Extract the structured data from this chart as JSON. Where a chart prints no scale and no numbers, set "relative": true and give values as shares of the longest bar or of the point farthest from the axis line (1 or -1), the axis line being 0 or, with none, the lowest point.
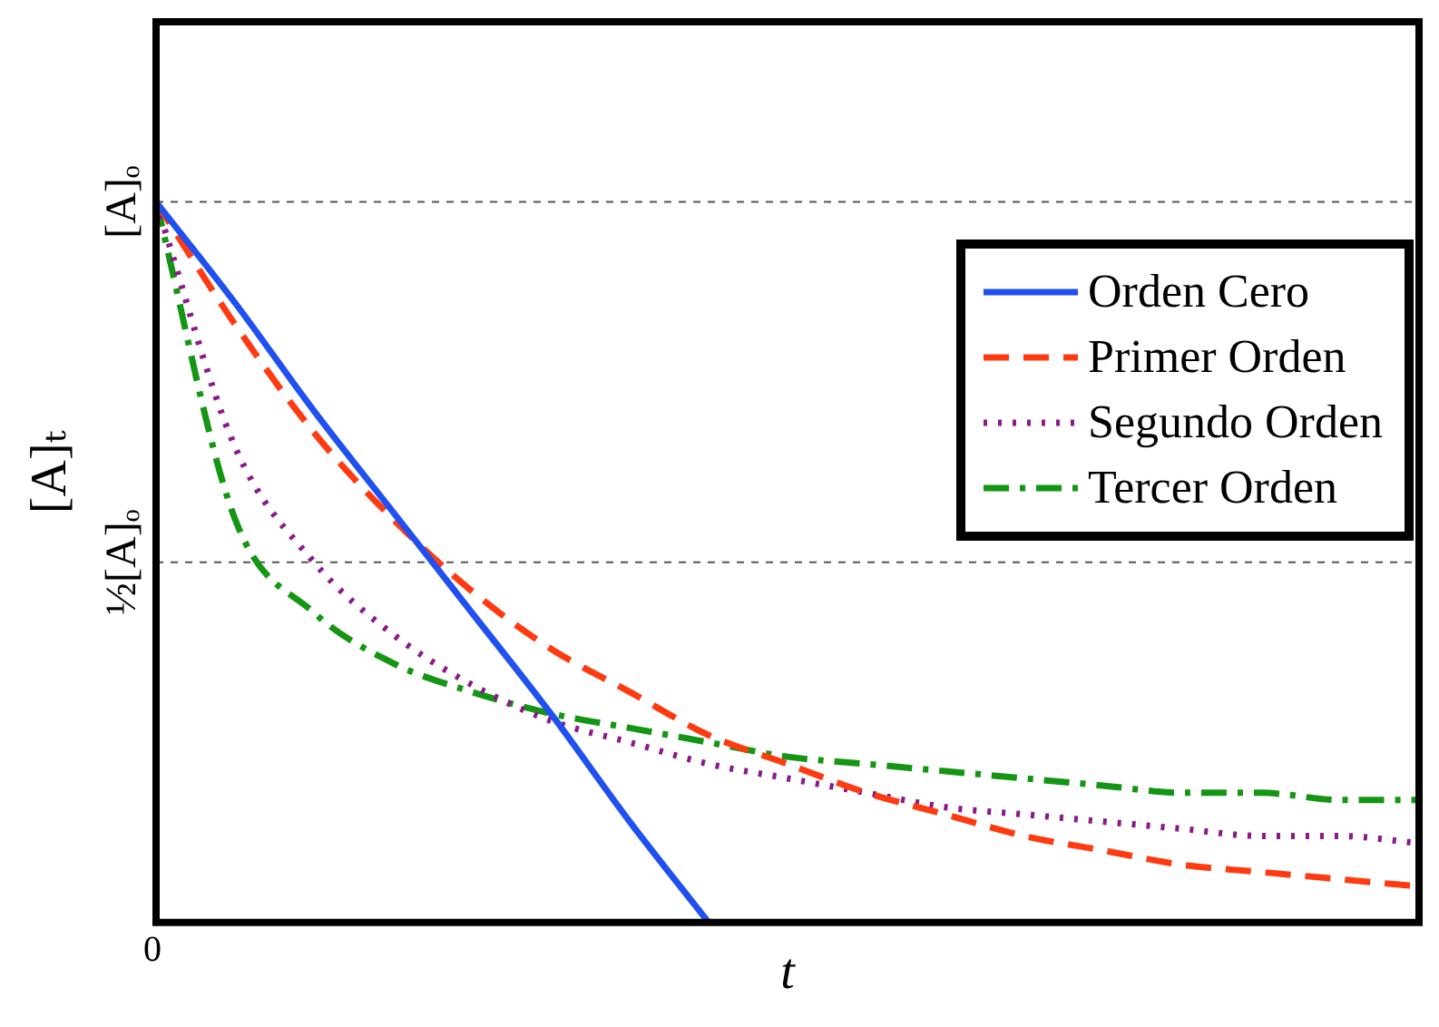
{
  "chart_data": {
    "type": "line",
    "xlabel": "t",
    "ylabel": "[A]ₜ",
    "annotations": [
      "0"
    ],
    "categories": [
      null,
      null,
      null,
      null,
      null,
      null,
      null,
      null,
      null,
      null,
      null,
      null,
      null,
      null,
      null,
      null,
      null
    ],
    "series": [
      {
        "name": "Orden Cero",
        "color": "#2050f0",
        "line_style": "solid",
        "values": [
          1,
          0.86,
          0.71,
          0.57,
          0.43,
          0.29,
          0.14,
          0,
          null,
          null,
          null,
          null,
          null,
          null,
          null,
          null,
          null
        ]
      },
      {
        "name": "Primer Orden",
        "color": "#ff3a10",
        "line_style": "dashed",
        "values": [
          1,
          0.83,
          0.68,
          0.56,
          0.46,
          0.38,
          0.32,
          0.26,
          0.22,
          0.18,
          0.15,
          0.12,
          0.1,
          0.08,
          0.07,
          0.06,
          0.05
        ]
      },
      {
        "name": "Segundo Orden",
        "color": "#8a1a8a",
        "line_style": "dotted",
        "values": [
          1,
          0.66,
          0.5,
          0.4,
          0.33,
          0.28,
          0.25,
          0.22,
          0.2,
          0.18,
          0.16,
          0.15,
          0.14,
          0.13,
          0.12,
          0.12,
          0.11
        ]
      },
      {
        "name": "Tercer Orden",
        "color": "#149614",
        "line_style": "dashdot",
        "values": [
          1,
          0.56,
          0.43,
          0.36,
          0.32,
          0.29,
          0.27,
          0.25,
          0.23,
          0.22,
          0.21,
          0.2,
          0.19,
          0.18,
          0.18,
          0.17,
          0.17
        ]
      }
    ],
    "relative": true,
    "ref_lines": [
      {
        "axis": "y",
        "value": 1,
        "label": "[A]ₒ",
        "color": "#555555",
        "line_style": "dashed"
      },
      {
        "axis": "y",
        "value": 0.5,
        "label": "½[A]ₒ",
        "color": "#555555",
        "line_style": "dashed"
      }
    ],
    "legend": "top right",
    "grid": false,
    "marker": "none"
  }
}
